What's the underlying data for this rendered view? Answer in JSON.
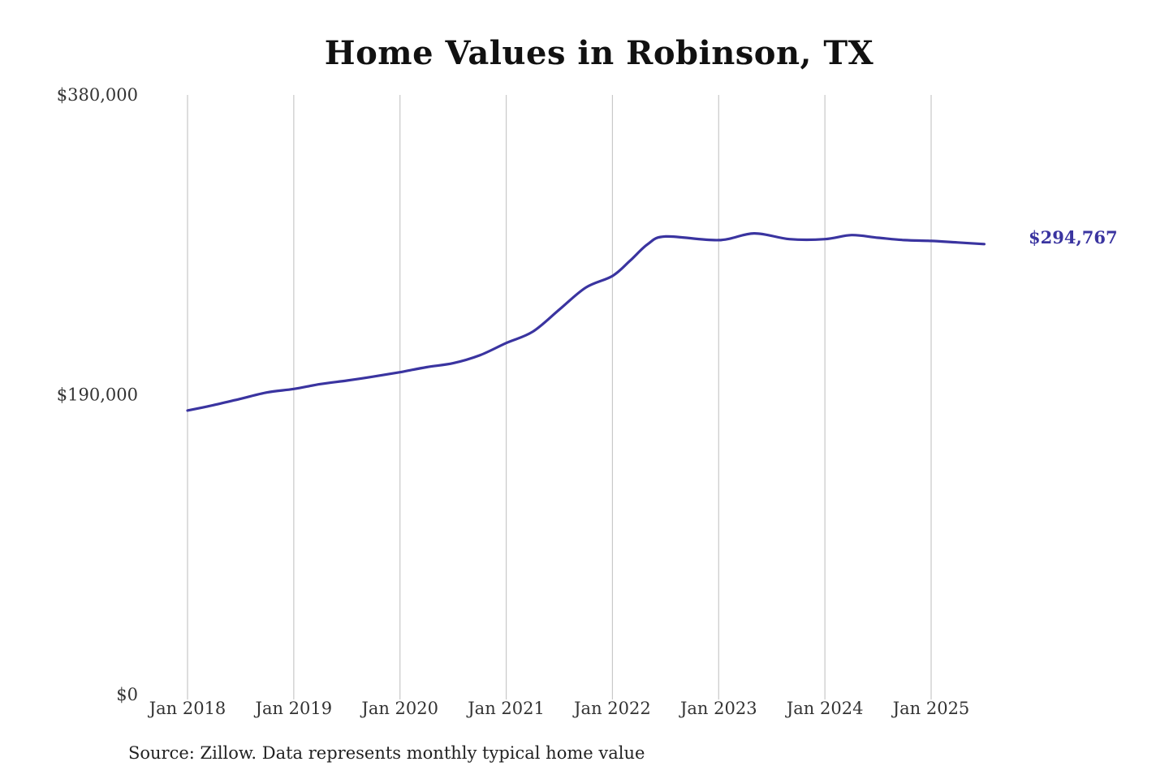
{
  "chart_data": {
    "type": "line",
    "title": "Home Values in Robinson, TX",
    "xlabel": "",
    "ylabel": "",
    "ylim": [
      0,
      380000
    ],
    "y_ticks": [
      {
        "value": 0,
        "label": "$0"
      },
      {
        "value": 190000,
        "label": "$190,000"
      },
      {
        "value": 380000,
        "label": "$380,000"
      }
    ],
    "x_ticks": [
      {
        "value": "2018-01",
        "label": "Jan 2018"
      },
      {
        "value": "2019-01",
        "label": "Jan 2019"
      },
      {
        "value": "2020-01",
        "label": "Jan 2020"
      },
      {
        "value": "2021-01",
        "label": "Jan 2021"
      },
      {
        "value": "2022-01",
        "label": "Jan 2022"
      },
      {
        "value": "2023-01",
        "label": "Jan 2023"
      },
      {
        "value": "2024-01",
        "label": "Jan 2024"
      },
      {
        "value": "2025-01",
        "label": "Jan 2025"
      }
    ],
    "grid": {
      "vertical": true,
      "horizontal": false
    },
    "line_color": "#3a34a0",
    "series": [
      {
        "name": "",
        "x": [
          "2018-01",
          "2018-04",
          "2018-07",
          "2018-10",
          "2019-01",
          "2019-04",
          "2019-07",
          "2019-10",
          "2020-01",
          "2020-04",
          "2020-07",
          "2020-10",
          "2021-01",
          "2021-04",
          "2021-07",
          "2021-10",
          "2022-01",
          "2022-03",
          "2022-05",
          "2022-07",
          "2023-01",
          "2023-05",
          "2023-09",
          "2024-01",
          "2024-04",
          "2024-07",
          "2024-10",
          "2025-01",
          "2025-04",
          "2025-07",
          "2025-09"
        ],
        "values": [
          180000,
          183500,
          187500,
          191500,
          193700,
          196800,
          199000,
          201500,
          204300,
          207500,
          210000,
          215000,
          222800,
          230000,
          244000,
          258000,
          265300,
          275000,
          285500,
          290300,
          288000,
          292300,
          288600,
          288600,
          291200,
          289500,
          288000,
          287500,
          286500,
          285500,
          294767
        ]
      }
    ],
    "end_label": {
      "text": "$294,767",
      "color": "#3a34a0"
    }
  },
  "source_note": "Source: Zillow. Data represents monthly typical home value"
}
